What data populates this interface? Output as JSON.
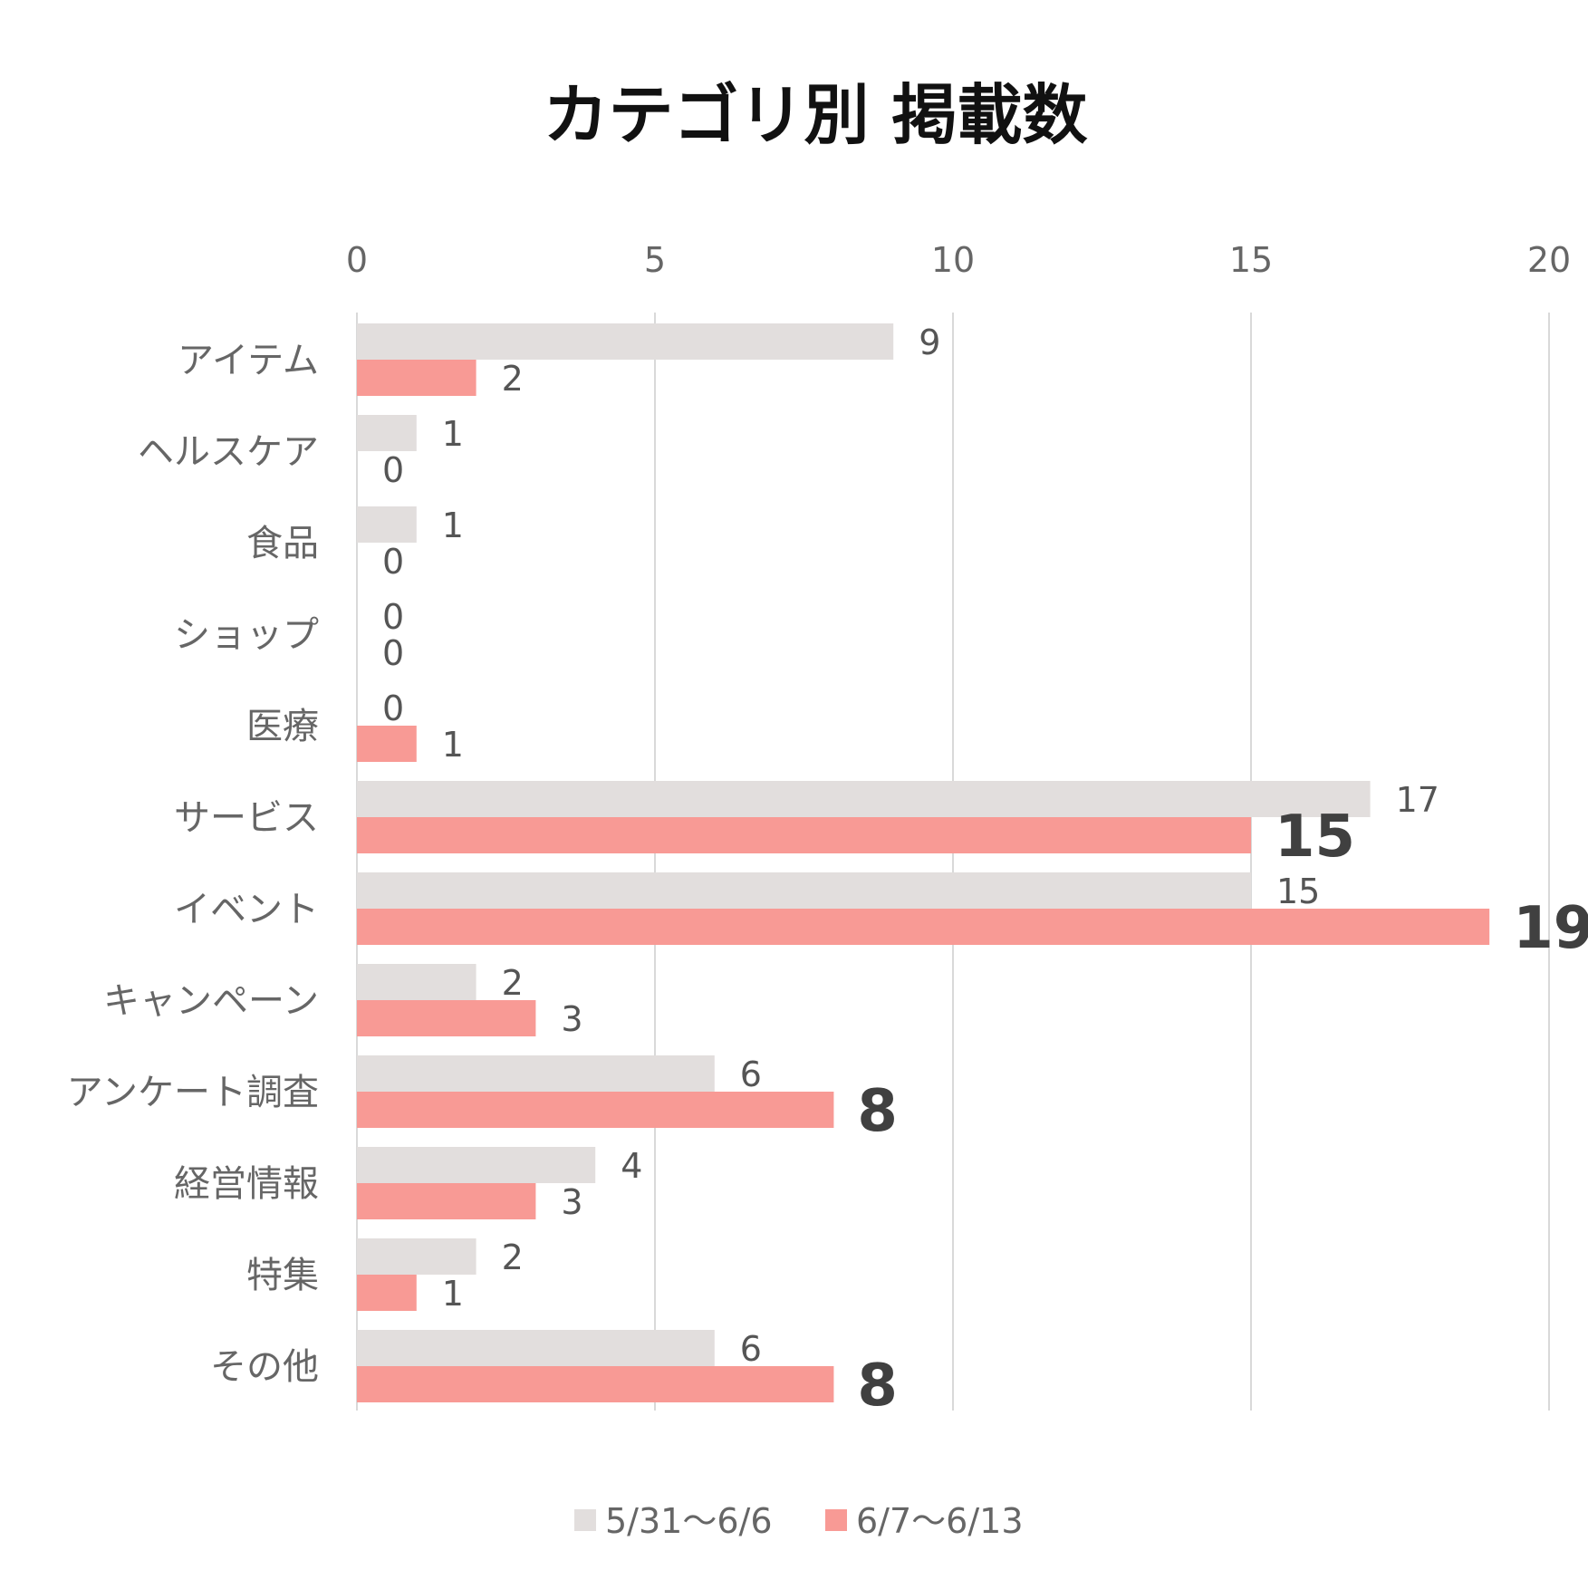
{
  "chart_data": {
    "type": "bar",
    "orientation": "horizontal",
    "title": "カテゴリ別 掲載数",
    "categories": [
      "アイテム",
      "ヘルスケア",
      "食品",
      "ショップ",
      "医療",
      "サービス",
      "イベント",
      "キャンペーン",
      "アンケート調査",
      "経営情報",
      "特集",
      "その他"
    ],
    "series": [
      {
        "name": "5/31〜6/6",
        "color": "#e2dedd",
        "values": [
          9,
          1,
          1,
          0,
          0,
          17,
          15,
          2,
          6,
          4,
          2,
          6
        ],
        "labels": [
          "9",
          "1",
          "1",
          "0",
          "0",
          "17",
          "15",
          "2",
          "6",
          "4",
          "2",
          "6"
        ]
      },
      {
        "name": "6/7〜6/13",
        "color": "#f89a95",
        "values": [
          2,
          0,
          0,
          0,
          1,
          15,
          19,
          3,
          8,
          3,
          1,
          8
        ],
        "labels": [
          "2",
          "0",
          "0",
          "0",
          "1",
          "15",
          "19",
          "3",
          "8",
          "3",
          "1",
          "8"
        ],
        "emphasized": [
          false,
          false,
          false,
          false,
          false,
          true,
          true,
          false,
          true,
          false,
          false,
          true
        ]
      }
    ],
    "xlim": [
      0,
      20
    ],
    "x_ticks": [
      "0",
      "5",
      "10",
      "15",
      "20"
    ],
    "x_tick_values": [
      0,
      5,
      10,
      15,
      20
    ],
    "axis_position": "top",
    "grid": true,
    "legend_position": "bottom-center",
    "colors": {
      "grid": "#d9d9d9",
      "text": "#666666"
    }
  }
}
